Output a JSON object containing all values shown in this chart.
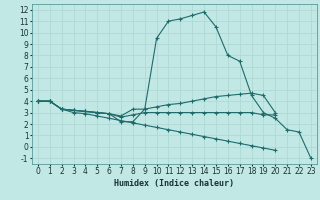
{
  "xlabel": "Humidex (Indice chaleur)",
  "xlim": [
    -0.5,
    23.5
  ],
  "ylim": [
    -1.5,
    12.5
  ],
  "xticks": [
    0,
    1,
    2,
    3,
    4,
    5,
    6,
    7,
    8,
    9,
    10,
    11,
    12,
    13,
    14,
    15,
    16,
    17,
    18,
    19,
    20,
    21,
    22,
    23
  ],
  "yticks": [
    -1,
    0,
    1,
    2,
    3,
    4,
    5,
    6,
    7,
    8,
    9,
    10,
    11,
    12
  ],
  "bg_color": "#c2e8e5",
  "grid_color": "#b0d8d5",
  "line_color": "#1e6b6b",
  "line1_x": [
    0,
    1,
    2,
    3,
    4,
    5,
    6,
    7,
    8,
    9,
    10,
    11,
    12,
    13,
    14,
    15,
    16,
    17,
    18,
    19,
    20,
    21,
    22,
    23
  ],
  "line1_y": [
    4.0,
    4.0,
    3.3,
    3.2,
    3.1,
    3.0,
    2.9,
    2.2,
    2.2,
    3.3,
    9.5,
    11.0,
    11.2,
    11.5,
    11.8,
    10.5,
    8.0,
    7.5,
    4.5,
    3.0,
    2.5,
    1.5,
    1.3,
    -1.0
  ],
  "line2_x": [
    0,
    1,
    2,
    3,
    4,
    5,
    6,
    7,
    8,
    9,
    10,
    11,
    12,
    13,
    14,
    15,
    16,
    17,
    18,
    19,
    20,
    21,
    22,
    23
  ],
  "line2_y": [
    4.0,
    4.0,
    3.3,
    3.2,
    3.1,
    3.0,
    2.9,
    2.7,
    3.3,
    3.3,
    3.5,
    3.7,
    3.8,
    4.0,
    4.2,
    4.4,
    4.5,
    4.6,
    4.7,
    4.5,
    3.0,
    null,
    null,
    null
  ],
  "line3_x": [
    0,
    1,
    2,
    3,
    4,
    5,
    6,
    7,
    8,
    9,
    10,
    11,
    12,
    13,
    14,
    15,
    16,
    17,
    18,
    19,
    20,
    21,
    22,
    23
  ],
  "line3_y": [
    4.0,
    4.0,
    3.3,
    3.2,
    3.1,
    3.0,
    2.9,
    2.6,
    2.8,
    3.0,
    3.0,
    3.0,
    3.0,
    3.0,
    3.0,
    3.0,
    3.0,
    3.0,
    3.0,
    2.8,
    2.8,
    null,
    null,
    null
  ],
  "line4_x": [
    0,
    1,
    2,
    3,
    4,
    5,
    6,
    7,
    8,
    9,
    10,
    11,
    12,
    13,
    14,
    15,
    16,
    17,
    18,
    19,
    20,
    21,
    22,
    23
  ],
  "line4_y": [
    4.0,
    4.0,
    3.3,
    3.0,
    2.9,
    2.7,
    2.5,
    2.3,
    2.1,
    1.9,
    1.7,
    1.5,
    1.3,
    1.1,
    0.9,
    0.7,
    0.5,
    0.3,
    0.1,
    -0.1,
    -0.3,
    null,
    null,
    null
  ]
}
